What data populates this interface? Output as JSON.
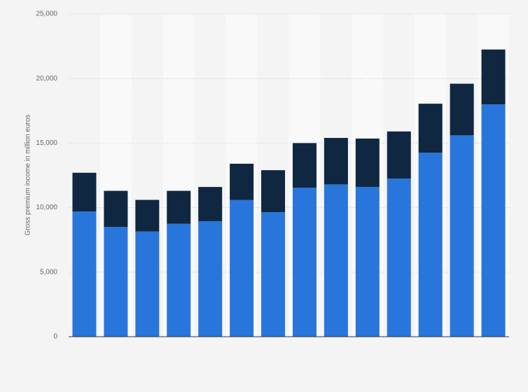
{
  "chart_data": {
    "type": "stacked-bar",
    "y_label": "Gross premium income in million euros",
    "categories": [
      null,
      null,
      null,
      null,
      null,
      null,
      null,
      null,
      null,
      null,
      null,
      null,
      null,
      null
    ],
    "series": [
      {
        "color": "#2875dc",
        "values": [
          9700,
          8500,
          8150,
          8750,
          8950,
          10600,
          9650,
          11550,
          11800,
          11600,
          12250,
          14250,
          15600,
          18000
        ]
      },
      {
        "color": "#0f2740",
        "values": [
          3000,
          2800,
          2450,
          2550,
          2650,
          2800,
          3250,
          3450,
          3600,
          3750,
          3650,
          3800,
          4000,
          4250
        ]
      }
    ],
    "ylim": [
      0,
      25000
    ],
    "yticks": [
      0,
      {
        "value": 5000,
        "label": "5,000"
      },
      {
        "value": 10000,
        "label": "10,000"
      },
      {
        "value": 15000,
        "label": "15,000"
      },
      {
        "value": 20000,
        "label": "20,000"
      },
      {
        "value": 25000,
        "label": "25,000"
      }
    ],
    "grid": true
  }
}
